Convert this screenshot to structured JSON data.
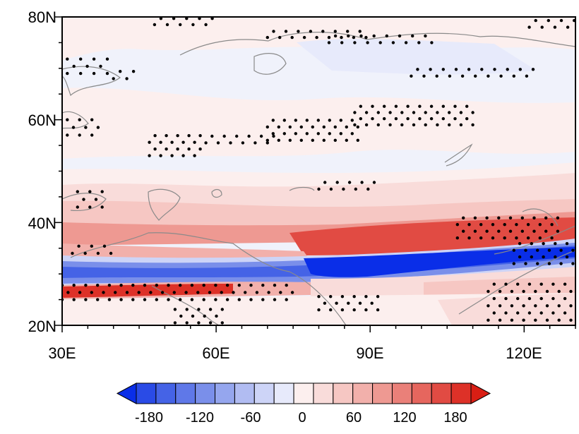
{
  "map": {
    "lat_labels": [
      "80N",
      "60N",
      "40N",
      "20N"
    ],
    "lat_values": [
      80,
      60,
      40,
      20
    ],
    "lon_labels": [
      "30E",
      "60E",
      "90E",
      "120E"
    ],
    "lon_values": [
      30,
      60,
      90,
      120
    ],
    "lat_range": [
      20,
      80
    ],
    "lon_range": [
      30,
      130
    ],
    "significance_marker": "stippling dots"
  },
  "colorbar": {
    "labels": [
      "-180",
      "-120",
      "-60",
      "0",
      "60",
      "120",
      "180"
    ],
    "label_values": [
      -180,
      -120,
      -60,
      0,
      60,
      120,
      180
    ],
    "levels": [
      -180,
      -160,
      -140,
      -120,
      -100,
      -80,
      -60,
      -40,
      -20,
      0,
      20,
      40,
      60,
      80,
      100,
      120,
      140,
      160,
      180
    ],
    "colors": [
      "#0a2ee8",
      "#2a4be6",
      "#4563e6",
      "#5f78e8",
      "#7a8fea",
      "#95a6ee",
      "#b1bcf2",
      "#cdd4f7",
      "#e7eafb",
      "#fcefee",
      "#f9dcda",
      "#f6c7c3",
      "#f2b0ab",
      "#ee9992",
      "#ea8079",
      "#e6665e",
      "#e14b43",
      "#dd3128",
      "#d91e14"
    ]
  },
  "chart_data": {
    "type": "heatmap",
    "title": "",
    "xlabel": "",
    "ylabel": "",
    "x_ticks": [
      "30E",
      "60E",
      "90E",
      "120E"
    ],
    "y_ticks": [
      "80N",
      "60N",
      "40N",
      "20N"
    ],
    "xlim": [
      30,
      130
    ],
    "ylim": [
      20,
      80
    ],
    "color_scale": [
      -180,
      180
    ],
    "features": [
      {
        "kind": "positive band",
        "lat": [
          25,
          27
        ],
        "lon": [
          30,
          65
        ],
        "value": 180
      },
      {
        "kind": "negative band",
        "lat": [
          28.5,
          31
        ],
        "lon": [
          30,
          130
        ],
        "value": -140
      },
      {
        "kind": "negative core",
        "lat": [
          28,
          32
        ],
        "lon": [
          78,
          105
        ],
        "value": -180
      },
      {
        "kind": "positive core",
        "lat": [
          34,
          38
        ],
        "lon": [
          75,
          130
        ],
        "value": 160
      },
      {
        "kind": "weak positive",
        "lat": [
          40,
          50
        ],
        "lon": [
          30,
          130
        ],
        "value": 40
      }
    ]
  }
}
